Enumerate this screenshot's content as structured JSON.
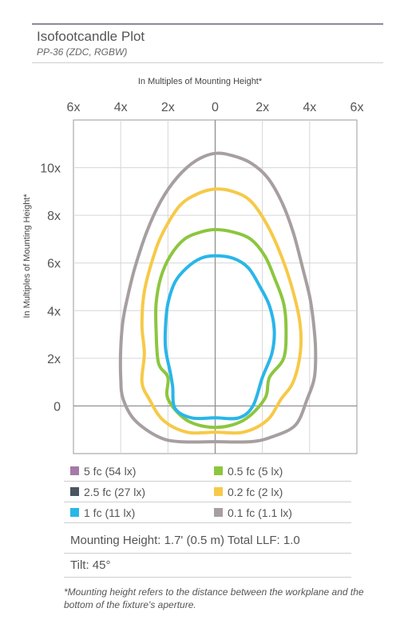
{
  "chart_data": {
    "type": "isoline",
    "title": "Isofootcandle Plot",
    "subtitle": "PP-36 (ZDC, RGBW)",
    "xlabel": "In Multiples of Mounting Height*",
    "ylabel": "In Multiples of Mounting Height*",
    "x_ticks": [
      "6x",
      "4x",
      "2x",
      "0",
      "2x",
      "4x",
      "6x"
    ],
    "x_tick_values": [
      -6,
      -4,
      -2,
      0,
      2,
      4,
      6
    ],
    "y_ticks": [
      "10x",
      "8x",
      "6x",
      "4x",
      "2x",
      "0"
    ],
    "y_tick_values": [
      10,
      8,
      6,
      4,
      2,
      0
    ],
    "xlim": [
      -6,
      6
    ],
    "ylim": [
      -2,
      12
    ],
    "grid": true,
    "series": [
      {
        "name": "0.1 fc (1.1 lx)",
        "color": "#a79f9f",
        "points": [
          [
            0,
            10.6
          ],
          [
            0.75,
            10.5
          ],
          [
            1.5,
            10.2
          ],
          [
            2.2,
            9.6
          ],
          [
            2.8,
            8.6
          ],
          [
            3.3,
            7.3
          ],
          [
            3.7,
            5.8
          ],
          [
            4.0,
            4.6
          ],
          [
            4.15,
            3.6
          ],
          [
            4.25,
            2.4
          ],
          [
            4.2,
            1.2
          ],
          [
            3.9,
            0.3
          ],
          [
            3.4,
            -0.8
          ],
          [
            2.4,
            -1.3
          ],
          [
            1.5,
            -1.5
          ],
          [
            0,
            -1.5
          ],
          [
            -1.5,
            -1.5
          ],
          [
            -2.4,
            -1.3
          ],
          [
            -3.4,
            -0.6
          ],
          [
            -3.9,
            0.3
          ],
          [
            -4.0,
            1.2
          ],
          [
            -4.0,
            2.4
          ],
          [
            -3.9,
            3.6
          ],
          [
            -3.7,
            4.6
          ],
          [
            -3.4,
            5.8
          ],
          [
            -2.9,
            7.3
          ],
          [
            -2.3,
            8.6
          ],
          [
            -1.6,
            9.6
          ],
          [
            -0.8,
            10.3
          ]
        ]
      },
      {
        "name": "0.2 fc (2 lx)",
        "color": "#f7c948",
        "points": [
          [
            0,
            9.1
          ],
          [
            0.75,
            9.0
          ],
          [
            1.5,
            8.6
          ],
          [
            2.2,
            7.6
          ],
          [
            2.8,
            6.3
          ],
          [
            3.3,
            4.8
          ],
          [
            3.6,
            3.4
          ],
          [
            3.6,
            2.2
          ],
          [
            3.3,
            1.0
          ],
          [
            2.8,
            0.3
          ],
          [
            2.2,
            -0.6
          ],
          [
            1.2,
            -1.1
          ],
          [
            0,
            -1.1
          ],
          [
            -1.2,
            -1.1
          ],
          [
            -2.2,
            -0.6
          ],
          [
            -2.8,
            0.3
          ],
          [
            -3.1,
            1.0
          ],
          [
            -3.0,
            2.2
          ],
          [
            -3.1,
            3.4
          ],
          [
            -3.0,
            4.8
          ],
          [
            -2.6,
            6.3
          ],
          [
            -2.2,
            7.3
          ],
          [
            -1.5,
            8.4
          ],
          [
            -0.75,
            8.9
          ]
        ]
      },
      {
        "name": "0.5 fc (5 lx)",
        "color": "#8cc63f",
        "points": [
          [
            0,
            7.4
          ],
          [
            0.75,
            7.3
          ],
          [
            1.5,
            7.0
          ],
          [
            2.1,
            6.3
          ],
          [
            2.5,
            5.4
          ],
          [
            2.9,
            4.3
          ],
          [
            3.0,
            3.2
          ],
          [
            2.9,
            2.0
          ],
          [
            2.3,
            1.2
          ],
          [
            2.1,
            0.3
          ],
          [
            1.2,
            -0.6
          ],
          [
            0,
            -0.9
          ],
          [
            -1.2,
            -0.6
          ],
          [
            -2.0,
            0.3
          ],
          [
            -2.0,
            1.2
          ],
          [
            -2.4,
            1.8
          ],
          [
            -2.5,
            3.2
          ],
          [
            -2.5,
            4.3
          ],
          [
            -2.3,
            5.4
          ],
          [
            -1.9,
            6.3
          ],
          [
            -1.3,
            7.0
          ],
          [
            -0.6,
            7.3
          ]
        ]
      },
      {
        "name": "1 fc (11 lx)",
        "color": "#29b6e8",
        "points": [
          [
            0,
            6.3
          ],
          [
            0.75,
            6.2
          ],
          [
            1.4,
            5.8
          ],
          [
            1.9,
            5.0
          ],
          [
            2.3,
            4.2
          ],
          [
            2.5,
            3.2
          ],
          [
            2.4,
            2.2
          ],
          [
            2.0,
            1.2
          ],
          [
            1.6,
            0.0
          ],
          [
            1.0,
            -0.5
          ],
          [
            0,
            -0.5
          ],
          [
            -1.0,
            -0.5
          ],
          [
            -1.7,
            -0.1
          ],
          [
            -1.8,
            0.8
          ],
          [
            -1.9,
            1.4
          ],
          [
            -2.1,
            2.4
          ],
          [
            -2.1,
            3.4
          ],
          [
            -2.0,
            4.3
          ],
          [
            -1.7,
            5.2
          ],
          [
            -1.2,
            5.8
          ],
          [
            -0.6,
            6.2
          ]
        ]
      }
    ],
    "legend": [
      {
        "label": "5 fc (54 lx)",
        "color": "#a57aa8"
      },
      {
        "label": "0.5 fc (5 lx)",
        "color": "#8cc63f"
      },
      {
        "label": "2.5 fc (27 lx)",
        "color": "#4a5563"
      },
      {
        "label": "0.2 fc (2 lx)",
        "color": "#f7c948"
      },
      {
        "label": "1 fc (11 lx)",
        "color": "#29b6e8"
      },
      {
        "label": "0.1 fc (1.1 lx)",
        "color": "#a79f9f"
      }
    ]
  },
  "info": {
    "mounting": "Mounting Height: 1.7' (0.5 m) Total LLF: 1.0",
    "tilt": "Tilt: 45°"
  },
  "footnote": "*Mounting height refers to the distance between the workplane and the bottom of the fixture's aperture."
}
